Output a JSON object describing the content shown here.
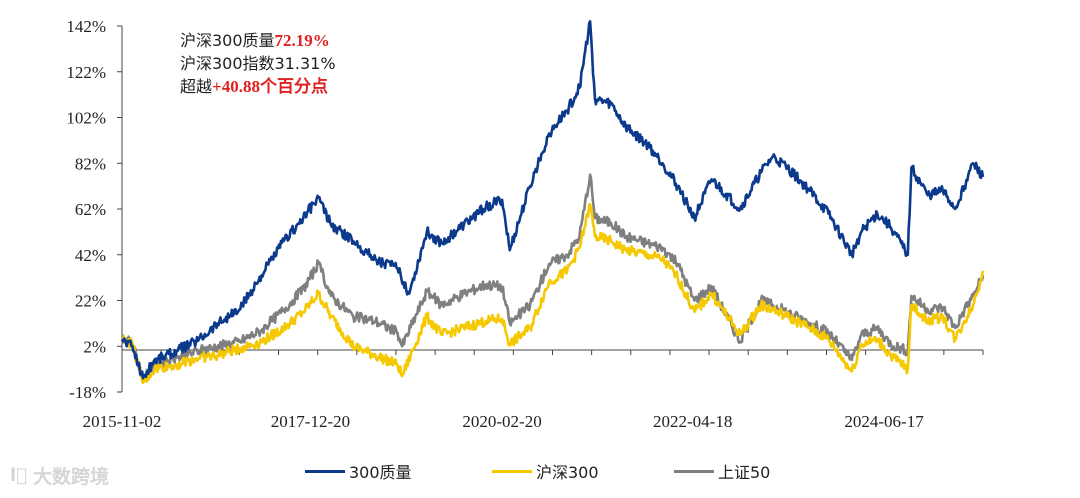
{
  "chart_data": {
    "type": "line",
    "ylim": [
      -18,
      142
    ],
    "y_ticks": [
      -18,
      2,
      22,
      42,
      62,
      82,
      102,
      122,
      142
    ],
    "y_tick_labels": [
      "-18%",
      "2%",
      "22%",
      "42%",
      "62%",
      "82%",
      "102%",
      "122%",
      "142%"
    ],
    "x_tick_labels": [
      "2015-11-02",
      "2017-12-20",
      "2020-02-20",
      "2022-04-18",
      "2024-06-17"
    ],
    "x_range": [
      "2015-11-02",
      "2025-07-31"
    ],
    "grid": false,
    "legend_position": "bottom",
    "series": [
      {
        "name": "300质量",
        "color": "#0b3a8c",
        "points": [
          [
            "2015-11-02",
            5
          ],
          [
            "2015-12-15",
            2
          ],
          [
            "2016-01-28",
            -12
          ],
          [
            "2016-03-15",
            -4
          ],
          [
            "2016-06-15",
            0
          ],
          [
            "2016-09-15",
            5
          ],
          [
            "2016-12-01",
            12
          ],
          [
            "2017-03-01",
            18
          ],
          [
            "2017-06-01",
            33
          ],
          [
            "2017-09-01",
            48
          ],
          [
            "2017-11-20",
            58
          ],
          [
            "2018-01-22",
            67
          ],
          [
            "2018-03-15",
            55
          ],
          [
            "2018-06-15",
            48
          ],
          [
            "2018-09-15",
            40
          ],
          [
            "2018-12-15",
            36
          ],
          [
            "2019-02-01",
            25
          ],
          [
            "2019-04-15",
            52
          ],
          [
            "2019-06-15",
            47
          ],
          [
            "2019-09-15",
            55
          ],
          [
            "2019-12-15",
            63
          ],
          [
            "2020-02-20",
            66
          ],
          [
            "2020-03-23",
            44
          ],
          [
            "2020-06-15",
            72
          ],
          [
            "2020-09-01",
            95
          ],
          [
            "2020-11-15",
            105
          ],
          [
            "2021-01-05",
            115
          ],
          [
            "2021-02-18",
            144
          ],
          [
            "2021-03-10",
            110
          ],
          [
            "2021-05-15",
            108
          ],
          [
            "2021-07-15",
            98
          ],
          [
            "2021-10-15",
            90
          ],
          [
            "2021-12-15",
            82
          ],
          [
            "2022-02-15",
            72
          ],
          [
            "2022-04-25",
            58
          ],
          [
            "2022-07-05",
            75
          ],
          [
            "2022-10-31",
            62
          ],
          [
            "2023-01-25",
            78
          ],
          [
            "2023-03-15",
            85
          ],
          [
            "2023-05-15",
            80
          ],
          [
            "2023-08-15",
            70
          ],
          [
            "2023-10-31",
            60
          ],
          [
            "2024-02-05",
            42
          ],
          [
            "2024-03-15",
            52
          ],
          [
            "2024-05-20",
            60
          ],
          [
            "2024-07-15",
            54
          ],
          [
            "2024-09-23",
            42
          ],
          [
            "2024-10-08",
            80
          ],
          [
            "2024-12-15",
            68
          ],
          [
            "2025-02-15",
            70
          ],
          [
            "2025-04-07",
            62
          ],
          [
            "2025-05-15",
            72
          ],
          [
            "2025-06-20",
            82
          ],
          [
            "2025-07-31",
            76
          ]
        ]
      },
      {
        "name": "沪深300",
        "color": "#f5c800",
        "points": [
          [
            "2015-11-02",
            5
          ],
          [
            "2015-12-15",
            3
          ],
          [
            "2016-01-28",
            -14
          ],
          [
            "2016-03-15",
            -8
          ],
          [
            "2016-06-15",
            -6
          ],
          [
            "2016-09-15",
            -3
          ],
          [
            "2016-12-01",
            -2
          ],
          [
            "2017-03-01",
            1
          ],
          [
            "2017-06-01",
            4
          ],
          [
            "2017-09-01",
            10
          ],
          [
            "2017-11-20",
            17
          ],
          [
            "2018-01-22",
            25
          ],
          [
            "2018-03-15",
            15
          ],
          [
            "2018-06-15",
            2
          ],
          [
            "2018-09-15",
            -2
          ],
          [
            "2018-12-15",
            -6
          ],
          [
            "2019-01-03",
            -11
          ],
          [
            "2019-04-15",
            15
          ],
          [
            "2019-06-15",
            7
          ],
          [
            "2019-09-15",
            10
          ],
          [
            "2019-12-15",
            13
          ],
          [
            "2020-02-20",
            14
          ],
          [
            "2020-03-23",
            3
          ],
          [
            "2020-06-15",
            10
          ],
          [
            "2020-09-01",
            30
          ],
          [
            "2020-11-15",
            35
          ],
          [
            "2021-01-05",
            45
          ],
          [
            "2021-02-18",
            64
          ],
          [
            "2021-03-10",
            50
          ],
          [
            "2021-05-15",
            48
          ],
          [
            "2021-07-15",
            44
          ],
          [
            "2021-10-15",
            42
          ],
          [
            "2021-12-15",
            40
          ],
          [
            "2022-02-15",
            32
          ],
          [
            "2022-04-25",
            17
          ],
          [
            "2022-07-05",
            25
          ],
          [
            "2022-10-31",
            7
          ],
          [
            "2023-01-25",
            20
          ],
          [
            "2023-03-15",
            18
          ],
          [
            "2023-05-15",
            15
          ],
          [
            "2023-08-15",
            10
          ],
          [
            "2023-10-31",
            5
          ],
          [
            "2024-02-05",
            -9
          ],
          [
            "2024-03-15",
            3
          ],
          [
            "2024-05-20",
            5
          ],
          [
            "2024-07-15",
            -2
          ],
          [
            "2024-09-23",
            -8
          ],
          [
            "2024-10-08",
            20
          ],
          [
            "2024-12-15",
            13
          ],
          [
            "2025-02-15",
            15
          ],
          [
            "2025-04-07",
            5
          ],
          [
            "2025-05-15",
            13
          ],
          [
            "2025-06-20",
            20
          ],
          [
            "2025-07-31",
            35
          ]
        ]
      },
      {
        "name": "上证50",
        "color": "#7f7f7f",
        "points": [
          [
            "2015-11-02",
            6
          ],
          [
            "2015-12-15",
            3
          ],
          [
            "2016-01-28",
            -12
          ],
          [
            "2016-03-15",
            -6
          ],
          [
            "2016-06-15",
            -3
          ],
          [
            "2016-09-15",
            0
          ],
          [
            "2016-12-01",
            2
          ],
          [
            "2017-03-01",
            4
          ],
          [
            "2017-06-01",
            9
          ],
          [
            "2017-09-01",
            18
          ],
          [
            "2017-11-20",
            27
          ],
          [
            "2018-01-22",
            38
          ],
          [
            "2018-03-15",
            24
          ],
          [
            "2018-06-15",
            15
          ],
          [
            "2018-09-15",
            13
          ],
          [
            "2018-12-15",
            8
          ],
          [
            "2019-01-03",
            2
          ],
          [
            "2019-04-15",
            26
          ],
          [
            "2019-06-15",
            20
          ],
          [
            "2019-09-15",
            25
          ],
          [
            "2019-12-15",
            29
          ],
          [
            "2020-02-20",
            28
          ],
          [
            "2020-03-23",
            12
          ],
          [
            "2020-06-15",
            20
          ],
          [
            "2020-09-01",
            38
          ],
          [
            "2020-11-15",
            42
          ],
          [
            "2021-01-05",
            50
          ],
          [
            "2021-02-18",
            77
          ],
          [
            "2021-03-10",
            58
          ],
          [
            "2021-05-15",
            56
          ],
          [
            "2021-07-15",
            50
          ],
          [
            "2021-10-15",
            47
          ],
          [
            "2021-12-15",
            45
          ],
          [
            "2022-02-15",
            38
          ],
          [
            "2022-04-25",
            22
          ],
          [
            "2022-07-05",
            28
          ],
          [
            "2022-10-31",
            4
          ],
          [
            "2023-01-25",
            22
          ],
          [
            "2023-03-15",
            20
          ],
          [
            "2023-05-15",
            17
          ],
          [
            "2023-08-15",
            12
          ],
          [
            "2023-10-31",
            8
          ],
          [
            "2024-02-05",
            -4
          ],
          [
            "2024-03-15",
            7
          ],
          [
            "2024-05-20",
            10
          ],
          [
            "2024-07-15",
            3
          ],
          [
            "2024-09-23",
            0
          ],
          [
            "2024-10-08",
            24
          ],
          [
            "2024-12-15",
            18
          ],
          [
            "2025-02-15",
            19
          ],
          [
            "2025-04-07",
            10
          ],
          [
            "2025-05-15",
            18
          ],
          [
            "2025-06-20",
            24
          ],
          [
            "2025-07-31",
            33
          ]
        ]
      }
    ]
  },
  "annotation": {
    "line1_prefix": "沪深300质量",
    "line1_value": "72.19%",
    "line2": "沪深300指数31.31%",
    "line3_prefix": "超越",
    "line3_value": "+40.88个百分点"
  },
  "watermark": {
    "logo": "l⃝",
    "text": "大数跨境"
  }
}
